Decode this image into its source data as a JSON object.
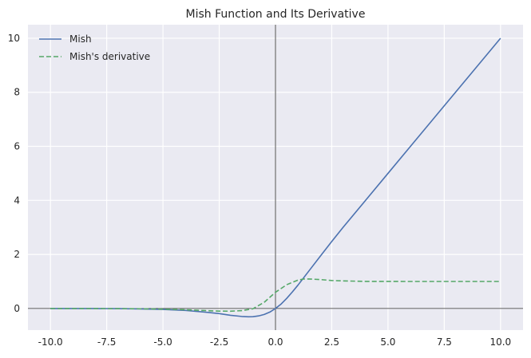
{
  "chart_data": {
    "type": "line",
    "title": "Mish Function and Its Derivative",
    "xlabel": "",
    "ylabel": "",
    "xlim": [
      -11.0,
      11.0
    ],
    "ylim": [
      -0.8,
      10.5
    ],
    "xticks": [
      -10.0,
      -7.5,
      -5.0,
      -2.5,
      0.0,
      2.5,
      5.0,
      7.5,
      10.0
    ],
    "xtick_labels": [
      "-10.0",
      "-7.5",
      "-5.0",
      "-2.5",
      "0.0",
      "2.5",
      "5.0",
      "7.5",
      "10.0"
    ],
    "yticks": [
      0,
      2,
      4,
      6,
      8,
      10
    ],
    "ytick_labels": [
      "0",
      "2",
      "4",
      "6",
      "8",
      "10"
    ],
    "grid": true,
    "legend_position": "top-left",
    "reference_lines": [
      {
        "axis": "x",
        "value": 0
      },
      {
        "axis": "y",
        "value": 0
      }
    ],
    "series": [
      {
        "name": "Mish",
        "color": "#4c72b0",
        "style": "solid",
        "x": [
          -10,
          -9,
          -8,
          -7,
          -6,
          -5,
          -4,
          -3,
          -2.5,
          -2,
          -1.5,
          -1.2,
          -1,
          -0.75,
          -0.5,
          -0.25,
          0,
          0.25,
          0.5,
          0.75,
          1,
          1.5,
          2,
          2.5,
          3,
          4,
          5,
          6,
          7,
          8,
          9,
          10
        ],
        "y": [
          -0.0005,
          -0.0011,
          -0.0027,
          -0.0064,
          -0.0149,
          -0.0336,
          -0.0727,
          -0.1456,
          -0.1905,
          -0.2525,
          -0.2952,
          -0.3088,
          -0.3034,
          -0.2757,
          -0.2219,
          -0.1335,
          0.0,
          0.1643,
          0.3751,
          0.6117,
          0.8651,
          1.4033,
          1.944,
          2.4789,
          3.0,
          3.9974,
          4.9993,
          5.9999,
          7.0,
          8.0,
          9.0,
          10.0
        ]
      },
      {
        "name": "Mish's derivative",
        "color": "#55a868",
        "style": "dashed",
        "x": [
          -10,
          -9,
          -8,
          -7,
          -6,
          -5,
          -4,
          -3,
          -2.5,
          -2,
          -1.5,
          -1,
          -0.5,
          0,
          0.5,
          1,
          1.25,
          1.5,
          2,
          2.5,
          3,
          4,
          5,
          6,
          7,
          8,
          9,
          10
        ],
        "y": [
          -0.0004,
          -0.0009,
          -0.002,
          -0.0048,
          -0.0108,
          -0.0232,
          -0.0462,
          -0.081,
          -0.098,
          -0.1,
          -0.08,
          -0.01,
          0.23,
          0.6,
          0.88,
          1.05,
          1.09,
          1.09,
          1.07,
          1.035,
          1.02,
          1.003,
          1.0003,
          1.0,
          1.0,
          1.0,
          1.0,
          1.0
        ]
      }
    ]
  }
}
